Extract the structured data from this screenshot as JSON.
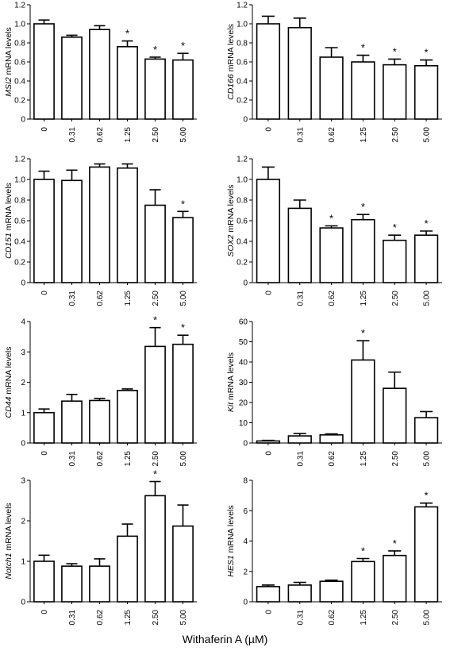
{
  "figure": {
    "xlabel": "Withaferin A (µM)"
  },
  "chart_data": [
    {
      "type": "bar",
      "gene": "MSI2",
      "ylabel_suffix": " mRNA levels",
      "categories": [
        "0",
        "0.31",
        "0.62",
        "1.25",
        "2.50",
        "5.00"
      ],
      "values": [
        1.0,
        0.86,
        0.94,
        0.76,
        0.63,
        0.62
      ],
      "errors": [
        0.04,
        0.02,
        0.04,
        0.06,
        0.02,
        0.07
      ],
      "significant": [
        false,
        false,
        false,
        true,
        true,
        true
      ],
      "ylim": [
        0,
        1.2
      ],
      "yticks": [
        0,
        0.2,
        0.4,
        0.6,
        0.8,
        1.0,
        1.2
      ],
      "ytick_labels": [
        "0",
        "0.2",
        "0.4",
        "0.6",
        "0.8",
        "1.0",
        "1.2"
      ],
      "marker": "*"
    },
    {
      "type": "bar",
      "gene": "CD166",
      "ylabel_suffix": " mRNA levels",
      "categories": [
        "0",
        "0.31",
        "0.62",
        "1.25",
        "2.50",
        "5.00"
      ],
      "values": [
        1.0,
        0.96,
        0.65,
        0.6,
        0.57,
        0.56
      ],
      "errors": [
        0.08,
        0.1,
        0.1,
        0.07,
        0.06,
        0.06
      ],
      "significant": [
        false,
        false,
        false,
        true,
        true,
        true
      ],
      "ylim": [
        0,
        1.2
      ],
      "yticks": [
        0,
        0.2,
        0.4,
        0.6,
        0.8,
        1.0,
        1.2
      ],
      "ytick_labels": [
        "0",
        "0.2",
        "0.4",
        "0.6",
        "0.8",
        "1.0",
        "1.2"
      ],
      "marker": "*"
    },
    {
      "type": "bar",
      "gene": "CD151",
      "ylabel_suffix": " mRNA levels",
      "categories": [
        "0",
        "0.31",
        "0.62",
        "1.25",
        "2.50",
        "5.00"
      ],
      "values": [
        1.0,
        0.99,
        1.12,
        1.11,
        0.75,
        0.63
      ],
      "errors": [
        0.08,
        0.1,
        0.03,
        0.04,
        0.15,
        0.06
      ],
      "significant": [
        false,
        false,
        false,
        false,
        false,
        true
      ],
      "ylim": [
        0,
        1.2
      ],
      "yticks": [
        0,
        0.2,
        0.4,
        0.6,
        0.8,
        1.0,
        1.2
      ],
      "ytick_labels": [
        "0",
        "0.2",
        "0.4",
        "0.6",
        "0.8",
        "1.0",
        "1.2"
      ],
      "marker": "*"
    },
    {
      "type": "bar",
      "gene": "SOX2",
      "ylabel_suffix": " mRNA levels",
      "categories": [
        "0",
        "0.31",
        "0.62",
        "1.25",
        "2.50",
        "5.00"
      ],
      "values": [
        1.0,
        0.72,
        0.53,
        0.61,
        0.41,
        0.46
      ],
      "errors": [
        0.12,
        0.08,
        0.02,
        0.05,
        0.05,
        0.04
      ],
      "significant": [
        false,
        false,
        true,
        true,
        true,
        true
      ],
      "ylim": [
        0,
        1.2
      ],
      "yticks": [
        0,
        0.2,
        0.4,
        0.6,
        0.8,
        1.0,
        1.2
      ],
      "ytick_labels": [
        "0",
        "0.2",
        "0.4",
        "0.6",
        "0.8",
        "1.0",
        "1.2"
      ],
      "marker": "*"
    },
    {
      "type": "bar",
      "gene": "CD44",
      "ylabel_suffix": " mRNA levels",
      "categories": [
        "0",
        "0.31",
        "0.62",
        "1.25",
        "2.50",
        "5.00"
      ],
      "values": [
        1.0,
        1.38,
        1.4,
        1.73,
        3.18,
        3.25
      ],
      "errors": [
        0.12,
        0.22,
        0.07,
        0.05,
        0.62,
        0.3
      ],
      "significant": [
        false,
        false,
        false,
        false,
        true,
        true
      ],
      "ylim": [
        0,
        4
      ],
      "yticks": [
        0,
        1,
        2,
        3,
        4
      ],
      "ytick_labels": [
        "0",
        "1",
        "2",
        "3",
        "4"
      ],
      "marker": "*"
    },
    {
      "type": "bar",
      "gene": "Kit",
      "ylabel_suffix": " mRNA levels",
      "categories": [
        "0",
        "0.31",
        "0.62",
        "1.25",
        "2.50",
        "5.00"
      ],
      "values": [
        1.0,
        3.5,
        4.0,
        41.0,
        27.0,
        12.5
      ],
      "errors": [
        0.3,
        1.2,
        0.5,
        9.5,
        8.0,
        3.0
      ],
      "significant": [
        false,
        false,
        false,
        true,
        false,
        false
      ],
      "ylim": [
        0,
        60
      ],
      "yticks": [
        0,
        10,
        20,
        30,
        40,
        50,
        60
      ],
      "ytick_labels": [
        "0",
        "10",
        "20",
        "30",
        "40",
        "50",
        "60"
      ],
      "marker": "*"
    },
    {
      "type": "bar",
      "gene": "Notch1",
      "ylabel_suffix": " mRNA levels",
      "categories": [
        "0",
        "0.31",
        "0.62",
        "1.25",
        "2.50",
        "5.00"
      ],
      "values": [
        1.0,
        0.88,
        0.88,
        1.62,
        2.62,
        1.87
      ],
      "errors": [
        0.15,
        0.06,
        0.18,
        0.3,
        0.35,
        0.52
      ],
      "significant": [
        false,
        false,
        false,
        false,
        true,
        false
      ],
      "ylim": [
        0,
        3
      ],
      "yticks": [
        0,
        1,
        2,
        3
      ],
      "ytick_labels": [
        "0",
        "1",
        "2",
        "3"
      ],
      "marker": "*"
    },
    {
      "type": "bar",
      "gene": "HES1",
      "ylabel_suffix": " mRNA levels",
      "categories": [
        "0",
        "0.31",
        "0.62",
        "1.25",
        "2.50",
        "5.00"
      ],
      "values": [
        1.0,
        1.1,
        1.35,
        2.65,
        3.05,
        6.25
      ],
      "errors": [
        0.1,
        0.18,
        0.07,
        0.2,
        0.3,
        0.25
      ],
      "significant": [
        false,
        false,
        false,
        true,
        true,
        true
      ],
      "ylim": [
        0,
        8
      ],
      "yticks": [
        0,
        2,
        4,
        6,
        8
      ],
      "ytick_labels": [
        "0",
        "2",
        "4",
        "6",
        "8"
      ],
      "marker": "*"
    }
  ]
}
